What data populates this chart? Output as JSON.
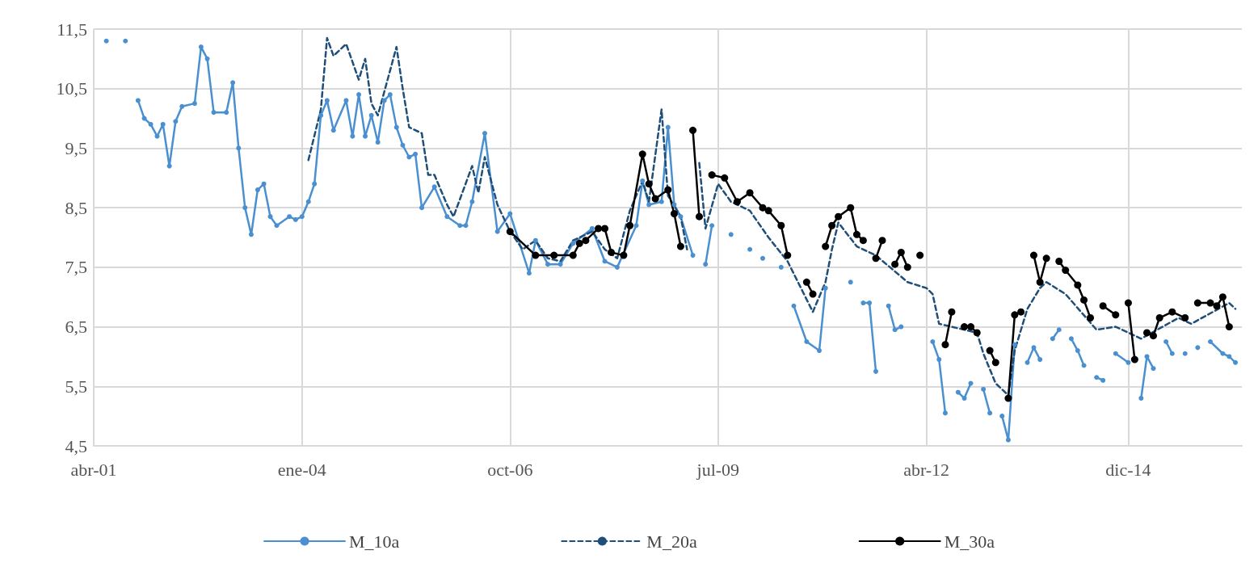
{
  "chart_data": {
    "type": "line",
    "legend": "bottom",
    "grid": true,
    "xlim": [
      "2001-04",
      "2016-06"
    ],
    "xticks": [
      {
        "value": "2001-04",
        "label": "abr-01"
      },
      {
        "value": "2004-01",
        "label": "ene-04"
      },
      {
        "value": "2006-10",
        "label": "oct-06"
      },
      {
        "value": "2009-07",
        "label": "jul-09"
      },
      {
        "value": "2012-04",
        "label": "abr-12"
      },
      {
        "value": "2014-12",
        "label": "dic-14"
      }
    ],
    "ylim": [
      4.5,
      11.5
    ],
    "yticks": [
      {
        "value": 4.5,
        "label": "4,5"
      },
      {
        "value": 5.5,
        "label": "5,5"
      },
      {
        "value": 6.5,
        "label": "6,5"
      },
      {
        "value": 7.5,
        "label": "7,5"
      },
      {
        "value": 8.5,
        "label": "8,5"
      },
      {
        "value": 9.5,
        "label": "9,5"
      },
      {
        "value": 10.5,
        "label": "10,5"
      },
      {
        "value": 11.5,
        "label": "11,5"
      }
    ],
    "series": [
      {
        "name": "M_10a",
        "color": "#4a90d0",
        "marker": "circle",
        "line_style": "solid",
        "x": [
          "2001-06",
          "2001-07",
          "2001-09",
          "2001-10",
          "2001-11",
          "2001-12",
          "2002-01",
          "2002-02",
          "2002-03",
          "2002-04",
          "2002-05",
          "2002-06",
          "2002-08",
          "2002-09",
          "2002-10",
          "2002-11",
          "2003-01",
          "2003-02",
          "2003-03",
          "2003-04",
          "2003-05",
          "2003-06",
          "2003-07",
          "2003-08",
          "2003-09",
          "2003-11",
          "2003-12",
          "2004-01",
          "2004-02",
          "2004-03",
          "2004-04",
          "2004-05",
          "2004-06",
          "2004-08",
          "2004-09",
          "2004-10",
          "2004-11",
          "2004-12",
          "2005-01",
          "2005-02",
          "2005-03",
          "2005-04",
          "2005-05",
          "2005-06",
          "2005-07",
          "2005-08",
          "2005-10",
          "2005-12",
          "2006-02",
          "2006-03",
          "2006-04",
          "2006-06",
          "2006-08",
          "2006-10",
          "2007-01",
          "2007-02",
          "2007-04",
          "2007-06",
          "2007-08",
          "2007-11",
          "2008-01",
          "2008-03",
          "2008-06",
          "2008-07",
          "2008-08",
          "2008-10",
          "2008-11",
          "2008-12",
          "2009-01",
          "2009-03",
          "2009-04",
          "2009-05",
          "2009-06",
          "2009-07",
          "2009-09",
          "2009-10",
          "2009-12",
          "2010-01",
          "2010-02",
          "2010-03",
          "2010-05",
          "2010-06",
          "2010-07",
          "2010-09",
          "2010-11",
          "2010-12",
          "2011-01",
          "2011-04",
          "2011-05",
          "2011-06",
          "2011-07",
          "2011-08",
          "2011-09",
          "2011-10",
          "2011-11",
          "2011-12",
          "2012-01",
          "2012-05",
          "2012-06",
          "2012-07",
          "2012-08",
          "2012-09",
          "2012-10",
          "2012-11",
          "2012-12",
          "2013-01",
          "2013-02",
          "2013-03",
          "2013-04",
          "2013-05",
          "2013-06",
          "2013-07",
          "2013-08",
          "2013-09",
          "2013-10",
          "2013-11",
          "2013-12",
          "2014-01",
          "2014-02",
          "2014-03",
          "2014-04",
          "2014-05",
          "2014-06",
          "2014-07",
          "2014-08",
          "2014-09",
          "2014-10",
          "2014-12",
          "2015-01",
          "2015-02",
          "2015-03",
          "2015-04",
          "2015-05",
          "2015-06",
          "2015-07",
          "2015-08",
          "2015-09",
          "2015-10",
          "2015-11",
          "2015-12",
          "2016-01",
          "2016-03",
          "2016-04",
          "2016-05"
        ],
        "values": [
          11.3,
          null,
          11.3,
          null,
          10.3,
          10.0,
          9.9,
          9.7,
          9.9,
          9.2,
          9.95,
          10.2,
          10.25,
          11.2,
          11.0,
          10.1,
          10.1,
          10.6,
          9.5,
          8.5,
          8.05,
          8.8,
          8.9,
          8.35,
          8.2,
          8.35,
          8.3,
          8.35,
          8.6,
          8.9,
          10.05,
          10.3,
          9.8,
          10.3,
          9.7,
          10.4,
          9.7,
          10.05,
          9.6,
          10.3,
          10.4,
          9.85,
          9.55,
          9.35,
          9.4,
          8.5,
          8.85,
          8.35,
          8.2,
          8.2,
          8.6,
          9.75,
          8.1,
          8.4,
          7.4,
          7.95,
          7.55,
          7.55,
          7.9,
          8.15,
          7.6,
          7.5,
          8.2,
          8.95,
          8.55,
          8.6,
          9.85,
          8.55,
          8.35,
          7.7,
          null,
          7.55,
          8.2,
          null,
          8.05,
          null,
          7.8,
          null,
          7.65,
          null,
          7.5,
          null,
          6.85,
          6.25,
          6.1,
          7.15,
          null,
          7.25,
          null,
          6.9,
          6.9,
          5.75,
          null,
          6.85,
          6.45,
          6.5,
          null,
          6.25,
          5.95,
          5.05,
          null,
          5.4,
          5.3,
          5.55,
          null,
          5.45,
          5.05,
          null,
          5.0,
          4.6,
          6.2,
          null,
          5.9,
          6.15,
          5.95,
          null,
          6.3,
          6.45,
          null,
          6.3,
          6.1,
          5.85,
          null,
          5.65,
          5.6,
          null,
          6.05,
          5.9,
          null,
          5.3,
          6.0,
          5.8,
          null,
          6.25,
          6.05,
          null,
          6.05,
          null,
          6.15,
          null,
          6.25,
          6.05,
          6.0,
          5.9
        ]
      },
      {
        "name": "M_20a",
        "color": "#1f4e79",
        "marker": "none",
        "line_style": "dashed",
        "x": [
          "2004-02",
          "2004-04",
          "2004-05",
          "2004-06",
          "2004-08",
          "2004-10",
          "2004-11",
          "2004-12",
          "2005-01",
          "2005-04",
          "2005-05",
          "2005-06",
          "2005-08",
          "2005-09",
          "2005-10",
          "2005-12",
          "2006-01",
          "2006-04",
          "2006-05",
          "2006-06",
          "2006-08",
          "2006-10",
          "2006-12",
          "2007-02",
          "2007-04",
          "2007-06",
          "2007-08",
          "2007-11",
          "2008-01",
          "2008-03",
          "2008-05",
          "2008-07",
          "2008-08",
          "2008-10",
          "2008-11",
          "2009-01",
          "2009-02",
          "2009-03",
          "2009-04",
          "2009-05",
          "2009-07",
          "2009-09",
          "2009-12",
          "2010-03",
          "2010-06",
          "2010-10",
          "2010-12",
          "2011-01",
          "2011-02",
          "2011-05",
          "2011-08",
          "2012-01",
          "2012-04",
          "2012-05",
          "2012-06",
          "2012-08",
          "2012-12",
          "2013-01",
          "2013-03",
          "2013-05",
          "2013-06",
          "2013-08",
          "2013-10",
          "2013-11",
          "2014-02",
          "2014-07",
          "2014-10",
          "2015-02",
          "2015-08",
          "2015-10",
          "2016-04",
          "2016-05"
        ],
        "values": [
          9.3,
          10.15,
          11.35,
          11.05,
          11.25,
          10.65,
          11.0,
          10.25,
          10.05,
          11.2,
          10.5,
          9.85,
          9.75,
          9.05,
          9.05,
          8.55,
          8.35,
          9.2,
          8.75,
          9.35,
          8.55,
          8.1,
          7.8,
          7.95,
          7.65,
          7.6,
          7.95,
          8.1,
          7.8,
          7.65,
          8.45,
          8.95,
          8.6,
          10.15,
          8.7,
          8.35,
          7.8,
          null,
          9.25,
          8.15,
          8.9,
          8.6,
          8.45,
          8.0,
          7.6,
          6.75,
          7.25,
          7.8,
          8.25,
          7.85,
          7.7,
          7.25,
          7.15,
          7.05,
          6.55,
          6.5,
          6.4,
          6.05,
          5.55,
          5.35,
          6.1,
          6.8,
          7.15,
          7.25,
          7.05,
          6.45,
          6.5,
          6.3,
          6.65,
          6.55,
          6.9,
          6.8
        ]
      },
      {
        "name": "M_30a",
        "color": "#000000",
        "marker": "circle",
        "line_style": "solid",
        "x": [
          "2006-10",
          "2007-02",
          "2007-05",
          "2007-08",
          "2007-09",
          "2007-10",
          "2007-12",
          "2008-01",
          "2008-02",
          "2008-04",
          "2008-05",
          "2008-07",
          "2008-08",
          "2008-09",
          "2008-11",
          "2008-12",
          "2009-01",
          "2009-02",
          "2009-03",
          "2009-04",
          "2009-05",
          "2009-06",
          "2009-08",
          "2009-10",
          "2009-12",
          "2010-02",
          "2010-03",
          "2010-05",
          "2010-06",
          "2010-07",
          "2010-09",
          "2010-10",
          "2010-11",
          "2010-12",
          "2011-01",
          "2011-02",
          "2011-04",
          "2011-05",
          "2011-06",
          "2011-07",
          "2011-08",
          "2011-09",
          "2011-10",
          "2011-11",
          "2011-12",
          "2012-01",
          "2012-02",
          "2012-03",
          "2012-04",
          "2012-07",
          "2012-08",
          "2012-09",
          "2012-10",
          "2012-11",
          "2012-12",
          "2013-01",
          "2013-02",
          "2013-03",
          "2013-04",
          "2013-05",
          "2013-06",
          "2013-07",
          "2013-08",
          "2013-09",
          "2013-10",
          "2013-11",
          "2013-12",
          "2014-01",
          "2014-02",
          "2014-04",
          "2014-05",
          "2014-06",
          "2014-07",
          "2014-08",
          "2014-10",
          "2014-11",
          "2014-12",
          "2015-01",
          "2015-02",
          "2015-03",
          "2015-04",
          "2015-05",
          "2015-07",
          "2015-09",
          "2015-10",
          "2015-11",
          "2016-01",
          "2016-02",
          "2016-03",
          "2016-04"
        ],
        "values": [
          8.1,
          7.7,
          7.7,
          7.7,
          7.9,
          7.95,
          8.15,
          8.15,
          7.75,
          7.7,
          8.2,
          9.4,
          8.9,
          8.65,
          8.8,
          8.4,
          7.85,
          null,
          9.8,
          8.35,
          null,
          9.05,
          9.0,
          8.6,
          8.75,
          8.5,
          8.45,
          8.2,
          7.7,
          null,
          7.25,
          7.05,
          null,
          7.85,
          8.2,
          8.35,
          8.5,
          8.05,
          7.95,
          null,
          7.65,
          7.95,
          null,
          7.55,
          7.75,
          7.5,
          null,
          7.7,
          null,
          6.2,
          6.75,
          null,
          6.5,
          6.5,
          6.4,
          null,
          6.1,
          5.9,
          null,
          5.3,
          6.7,
          6.75,
          null,
          7.7,
          7.25,
          7.65,
          null,
          7.6,
          7.45,
          7.2,
          6.95,
          6.65,
          null,
          6.85,
          6.7,
          null,
          6.9,
          5.95,
          null,
          6.4,
          6.35,
          6.65,
          6.75,
          6.65,
          null,
          6.9,
          6.9,
          6.85,
          7.0,
          6.5
        ]
      }
    ]
  }
}
